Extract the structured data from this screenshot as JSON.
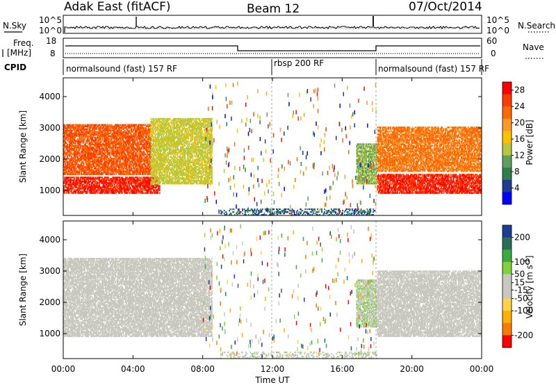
{
  "header": {
    "radar": "Adak East (fitACF)",
    "beam": "Beam 12",
    "date": "07/Oct/2014"
  },
  "noise_panel": {
    "left_label": "N.Sky",
    "right_label": "N.Search",
    "left_ticks": [
      "10^5",
      "10^0"
    ],
    "right_ticks": [
      "10^5",
      "10^0"
    ]
  },
  "freq_panel": {
    "left_label_1": "Freq.",
    "left_label_2": "[MHz]",
    "right_label": "Nave",
    "left_ticks": [
      "18",
      "8"
    ],
    "right_ticks": [
      "60",
      "0"
    ]
  },
  "cpid": {
    "label": "CPID",
    "segments": [
      {
        "label": "normalsound (fast) 157 RF",
        "start": "00:00",
        "end": "12:00"
      },
      {
        "label": "rbsp 200 RF",
        "start": "12:00",
        "end": "18:00"
      },
      {
        "label": "normalsound (fast) 157 RF",
        "start": "18:00",
        "end": "24:00"
      }
    ]
  },
  "x_axis": {
    "label": "Time UT",
    "ticks": [
      "00:00",
      "04:00",
      "08:00",
      "12:00",
      "16:00",
      "20:00",
      "00:00"
    ]
  },
  "colors": {
    "power": [
      "#0000ff",
      "#1c3c96",
      "#2f7e4e",
      "#5fa05a",
      "#b7c83c",
      "#ffc000",
      "#ff9a2a",
      "#ff6a00",
      "#ff3b00",
      "#ff0000"
    ],
    "velocity": [
      "#ff0000",
      "#ff7a00",
      "#ffb000",
      "#ffd24a",
      "#c8c8bf",
      "#c8c8bf",
      "#7fd23c",
      "#3caa3c",
      "#2a6e5a",
      "#1c3c96"
    ]
  },
  "chart_data": [
    {
      "type": "heatmap",
      "title": "Power",
      "xlabel": "",
      "ylabel": "Slant Range [km]",
      "xlim": [
        0,
        24
      ],
      "ylim": [
        200,
        4600
      ],
      "colorbar_label": "Power [dB]",
      "colorbar_ticks": [
        "4",
        "8",
        "12",
        "16",
        "20",
        "24",
        "28"
      ],
      "colorbar_range": [
        0,
        30
      ],
      "y_ticks": [
        "1000",
        "2000",
        "3000",
        "4000"
      ],
      "regions": [
        {
          "t0": 0.0,
          "t1": 5.5,
          "r0": 900,
          "r1": 1400,
          "value": 27
        },
        {
          "t0": 0.0,
          "t1": 5.0,
          "r0": 1500,
          "r1": 3100,
          "value": 24
        },
        {
          "t0": 5.0,
          "t1": 8.5,
          "r0": 1200,
          "r1": 3300,
          "value": 14
        },
        {
          "t0": 16.8,
          "t1": 18.0,
          "r0": 1200,
          "r1": 2500,
          "value": 12
        },
        {
          "t0": 18.0,
          "t1": 24.0,
          "r0": 900,
          "r1": 1500,
          "value": 27
        },
        {
          "t0": 18.0,
          "t1": 24.0,
          "r0": 1600,
          "r1": 3000,
          "value": 22
        },
        {
          "t0": 9.0,
          "t1": 18.0,
          "r0": 200,
          "r1": 400,
          "value": 6
        }
      ]
    },
    {
      "type": "heatmap",
      "title": "Velocity",
      "xlabel": "Time UT",
      "ylabel": "Slant Range [km]",
      "xlim": [
        0,
        24
      ],
      "ylim": [
        200,
        4600
      ],
      "colorbar_label": "Velocity [m s^-1]",
      "colorbar_ticks": [
        "200",
        "100",
        "50",
        "15",
        "-15",
        "-50",
        "-100",
        "-200"
      ],
      "colorbar_range": [
        -250,
        250
      ],
      "y_ticks": [
        "1000",
        "2000",
        "3000",
        "4000"
      ],
      "regions": [
        {
          "t0": 0.0,
          "t1": 8.5,
          "r0": 900,
          "r1": 3400,
          "value": 0
        },
        {
          "t0": 16.8,
          "t1": 18.0,
          "r0": 1200,
          "r1": 2700,
          "value": 40
        },
        {
          "t0": 18.0,
          "t1": 24.0,
          "r0": 900,
          "r1": 3000,
          "value": 0
        },
        {
          "t0": 9.0,
          "t1": 18.0,
          "r0": 200,
          "r1": 400,
          "value": 30
        }
      ]
    }
  ]
}
